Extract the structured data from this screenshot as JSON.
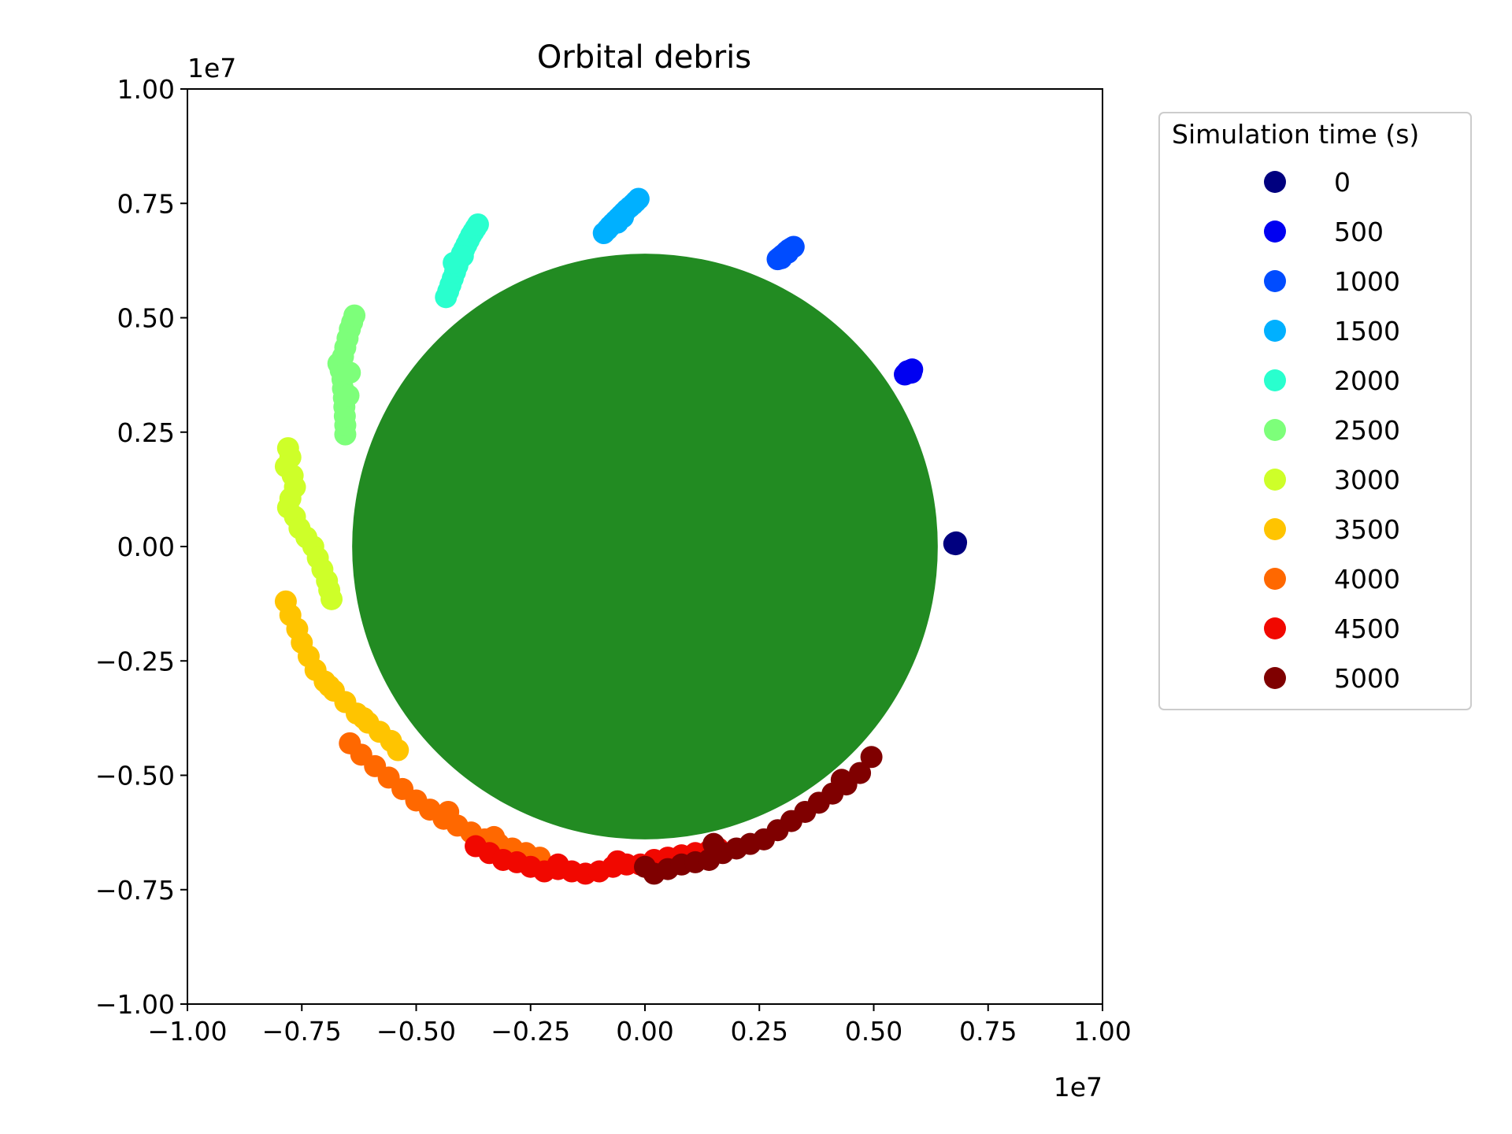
{
  "chart_data": {
    "type": "scatter",
    "title": "Orbital debris",
    "xlabel": "",
    "ylabel": "",
    "xlim": [
      -10000000,
      10000000
    ],
    "ylim": [
      -10000000,
      10000000
    ],
    "x_offset_label": "1e7",
    "y_offset_label": "1e7",
    "x_ticks": [
      -1.0,
      -0.75,
      -0.5,
      -0.25,
      0.0,
      0.25,
      0.5,
      0.75,
      1.0
    ],
    "y_ticks": [
      -1.0,
      -0.75,
      -0.5,
      -0.25,
      0.0,
      0.25,
      0.5,
      0.75,
      1.0
    ],
    "x_tick_labels": [
      "−1.00",
      "−0.75",
      "−0.50",
      "−0.25",
      "0.00",
      "0.25",
      "0.50",
      "0.75",
      "1.00"
    ],
    "y_tick_labels": [
      "−1.00",
      "−0.75",
      "−0.50",
      "−0.25",
      "0.00",
      "0.25",
      "0.50",
      "0.75",
      "1.00"
    ],
    "grid": false,
    "legend": {
      "title": "Simulation time (s)",
      "placement": "outside-right-top"
    },
    "planet": {
      "center": [
        0,
        0
      ],
      "radius": 6400000,
      "color": "#228b22"
    },
    "series": [
      {
        "name": "0",
        "color": "#00007f",
        "points": [
          [
            6780000,
            80000
          ],
          [
            6760000,
            60000
          ],
          [
            6800000,
            90000
          ],
          [
            6770000,
            70000
          ],
          [
            6790000,
            50000
          ]
        ]
      },
      {
        "name": "500",
        "color": "#0000f1",
        "points": [
          [
            5680000,
            3760000
          ],
          [
            5720000,
            3790000
          ],
          [
            5760000,
            3820000
          ],
          [
            5800000,
            3850000
          ],
          [
            5840000,
            3870000
          ],
          [
            5700000,
            3780000
          ],
          [
            5780000,
            3840000
          ],
          [
            5820000,
            3800000
          ],
          [
            5740000,
            3830000
          ]
        ]
      },
      {
        "name": "1000",
        "color": "#004cff",
        "points": [
          [
            2900000,
            6280000
          ],
          [
            2950000,
            6320000
          ],
          [
            3000000,
            6360000
          ],
          [
            3050000,
            6400000
          ],
          [
            3100000,
            6450000
          ],
          [
            3150000,
            6490000
          ],
          [
            3200000,
            6520000
          ],
          [
            3250000,
            6550000
          ],
          [
            2980000,
            6300000
          ],
          [
            3120000,
            6420000
          ]
        ]
      },
      {
        "name": "1500",
        "color": "#00b0ff",
        "points": [
          [
            -900000,
            6850000
          ],
          [
            -820000,
            6930000
          ],
          [
            -760000,
            7000000
          ],
          [
            -700000,
            7060000
          ],
          [
            -640000,
            7120000
          ],
          [
            -580000,
            7180000
          ],
          [
            -520000,
            7240000
          ],
          [
            -460000,
            7300000
          ],
          [
            -400000,
            7360000
          ],
          [
            -330000,
            7420000
          ],
          [
            -260000,
            7480000
          ],
          [
            -200000,
            7540000
          ],
          [
            -140000,
            7600000
          ],
          [
            -600000,
            7080000
          ],
          [
            -480000,
            7200000
          ]
        ]
      },
      {
        "name": "2000",
        "color": "#29ffce",
        "points": [
          [
            -4350000,
            5450000
          ],
          [
            -4300000,
            5580000
          ],
          [
            -4250000,
            5720000
          ],
          [
            -4200000,
            5860000
          ],
          [
            -4150000,
            6000000
          ],
          [
            -4100000,
            6140000
          ],
          [
            -4050000,
            6280000
          ],
          [
            -4000000,
            6400000
          ],
          [
            -3950000,
            6500000
          ],
          [
            -3900000,
            6600000
          ],
          [
            -3850000,
            6700000
          ],
          [
            -3800000,
            6800000
          ],
          [
            -3750000,
            6880000
          ],
          [
            -3700000,
            6960000
          ],
          [
            -3650000,
            7040000
          ],
          [
            -4180000,
            6200000
          ],
          [
            -3980000,
            6350000
          ]
        ]
      },
      {
        "name": "2500",
        "color": "#7dff7a",
        "points": [
          [
            -6550000,
            2450000
          ],
          [
            -6550000,
            2650000
          ],
          [
            -6560000,
            2850000
          ],
          [
            -6570000,
            3050000
          ],
          [
            -6580000,
            3250000
          ],
          [
            -6600000,
            3450000
          ],
          [
            -6610000,
            3650000
          ],
          [
            -6650000,
            3850000
          ],
          [
            -6700000,
            4000000
          ],
          [
            -6600000,
            4150000
          ],
          [
            -6550000,
            4350000
          ],
          [
            -6500000,
            4550000
          ],
          [
            -6450000,
            4750000
          ],
          [
            -6400000,
            4900000
          ],
          [
            -6350000,
            5050000
          ],
          [
            -6450000,
            3800000
          ],
          [
            -6480000,
            3300000
          ]
        ]
      },
      {
        "name": "3000",
        "color": "#ceff29",
        "points": [
          [
            -7800000,
            2150000
          ],
          [
            -7750000,
            1950000
          ],
          [
            -7850000,
            1750000
          ],
          [
            -7700000,
            1550000
          ],
          [
            -7650000,
            1300000
          ],
          [
            -7750000,
            1050000
          ],
          [
            -7800000,
            850000
          ],
          [
            -7650000,
            650000
          ],
          [
            -7550000,
            400000
          ],
          [
            -7400000,
            200000
          ],
          [
            -7250000,
            0
          ],
          [
            -7150000,
            -250000
          ],
          [
            -7050000,
            -500000
          ],
          [
            -6950000,
            -750000
          ],
          [
            -6900000,
            -950000
          ],
          [
            -6850000,
            -1150000
          ]
        ]
      },
      {
        "name": "3500",
        "color": "#ffc400",
        "points": [
          [
            -7850000,
            -1200000
          ],
          [
            -7750000,
            -1500000
          ],
          [
            -7600000,
            -1800000
          ],
          [
            -7500000,
            -2100000
          ],
          [
            -7350000,
            -2400000
          ],
          [
            -7200000,
            -2700000
          ],
          [
            -7000000,
            -2950000
          ],
          [
            -6800000,
            -3150000
          ],
          [
            -6550000,
            -3400000
          ],
          [
            -6300000,
            -3650000
          ],
          [
            -6050000,
            -3850000
          ],
          [
            -5800000,
            -4050000
          ],
          [
            -5550000,
            -4250000
          ],
          [
            -5400000,
            -4450000
          ],
          [
            -6900000,
            -3050000
          ],
          [
            -6150000,
            -3750000
          ]
        ]
      },
      {
        "name": "4000",
        "color": "#ff6800",
        "points": [
          [
            -6450000,
            -4300000
          ],
          [
            -6200000,
            -4550000
          ],
          [
            -5900000,
            -4800000
          ],
          [
            -5600000,
            -5050000
          ],
          [
            -5300000,
            -5300000
          ],
          [
            -5000000,
            -5550000
          ],
          [
            -4700000,
            -5750000
          ],
          [
            -4400000,
            -5950000
          ],
          [
            -4100000,
            -6100000
          ],
          [
            -3800000,
            -6250000
          ],
          [
            -3500000,
            -6400000
          ],
          [
            -3200000,
            -6500000
          ],
          [
            -2900000,
            -6600000
          ],
          [
            -2600000,
            -6700000
          ],
          [
            -2300000,
            -6800000
          ],
          [
            -4300000,
            -5800000
          ],
          [
            -3300000,
            -6350000
          ]
        ]
      },
      {
        "name": "4500",
        "color": "#f10800",
        "points": [
          [
            -3700000,
            -6550000
          ],
          [
            -3400000,
            -6700000
          ],
          [
            -3100000,
            -6850000
          ],
          [
            -2800000,
            -6900000
          ],
          [
            -2500000,
            -7000000
          ],
          [
            -2200000,
            -7100000
          ],
          [
            -1900000,
            -7050000
          ],
          [
            -1600000,
            -7100000
          ],
          [
            -1300000,
            -7150000
          ],
          [
            -1000000,
            -7100000
          ],
          [
            -700000,
            -7000000
          ],
          [
            -400000,
            -6950000
          ],
          [
            -100000,
            -6950000
          ],
          [
            200000,
            -6850000
          ],
          [
            500000,
            -6800000
          ],
          [
            800000,
            -6750000
          ],
          [
            1100000,
            -6700000
          ],
          [
            1400000,
            -6650000
          ],
          [
            1600000,
            -6600000
          ],
          [
            -1900000,
            -6950000
          ],
          [
            -600000,
            -6880000
          ]
        ]
      },
      {
        "name": "5000",
        "color": "#7f0000",
        "points": [
          [
            0,
            -7000000
          ],
          [
            200000,
            -7150000
          ],
          [
            500000,
            -7050000
          ],
          [
            800000,
            -6950000
          ],
          [
            1100000,
            -6900000
          ],
          [
            1400000,
            -6850000
          ],
          [
            1700000,
            -6700000
          ],
          [
            2000000,
            -6600000
          ],
          [
            2300000,
            -6500000
          ],
          [
            2600000,
            -6400000
          ],
          [
            2900000,
            -6200000
          ],
          [
            3200000,
            -6000000
          ],
          [
            3500000,
            -5800000
          ],
          [
            3800000,
            -5600000
          ],
          [
            4100000,
            -5400000
          ],
          [
            4400000,
            -5200000
          ],
          [
            4700000,
            -4950000
          ],
          [
            4950000,
            -4600000
          ],
          [
            4300000,
            -5100000
          ],
          [
            1500000,
            -6500000
          ]
        ]
      }
    ]
  }
}
